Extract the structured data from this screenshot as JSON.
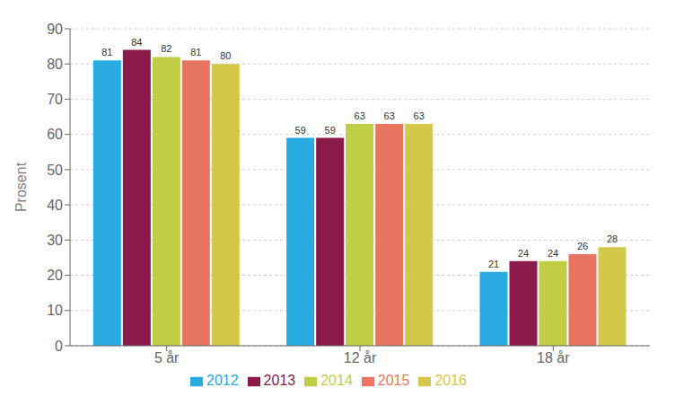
{
  "chart_data": {
    "type": "bar",
    "categories": [
      "5 år",
      "12 år",
      "18 år"
    ],
    "series": [
      {
        "name": "2012",
        "color": "#29ABE2",
        "values": [
          81,
          59,
          21
        ]
      },
      {
        "name": "2013",
        "color": "#8B1A4A",
        "values": [
          84,
          59,
          24
        ]
      },
      {
        "name": "2014",
        "color": "#BFCE44",
        "values": [
          82,
          63,
          24
        ]
      },
      {
        "name": "2015",
        "color": "#E87560",
        "values": [
          81,
          63,
          26
        ]
      },
      {
        "name": "2016",
        "color": "#D4C84A",
        "values": [
          80,
          63,
          28
        ]
      }
    ],
    "ylabel": "Prosent",
    "ylim": [
      0,
      90
    ],
    "yticks": [
      0,
      10,
      20,
      30,
      40,
      50,
      60,
      70,
      80,
      90
    ],
    "grid": true,
    "legend": "bottom",
    "data_labels": true
  }
}
